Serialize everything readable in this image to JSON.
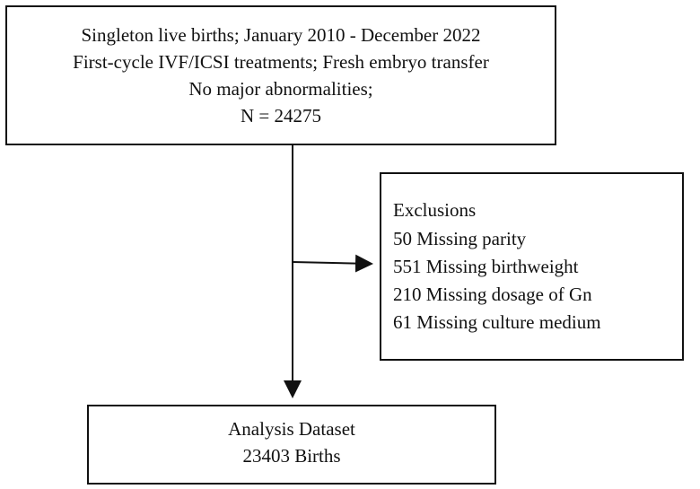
{
  "nodes": [
    {
      "lines": [
        "Singleton live births; January 2010 - December 2022",
        "First-cycle IVF/ICSI treatments; Fresh embryo transfer",
        "No major abnormalities;",
        "N = 24275"
      ]
    },
    {
      "lines": [
        "Exclusions",
        "50 Missing parity",
        "551 Missing birthweight",
        "210 Missing dosage of Gn",
        "61 Missing culture medium"
      ]
    },
    {
      "lines": [
        "Analysis Dataset",
        "23403 Births"
      ]
    }
  ]
}
